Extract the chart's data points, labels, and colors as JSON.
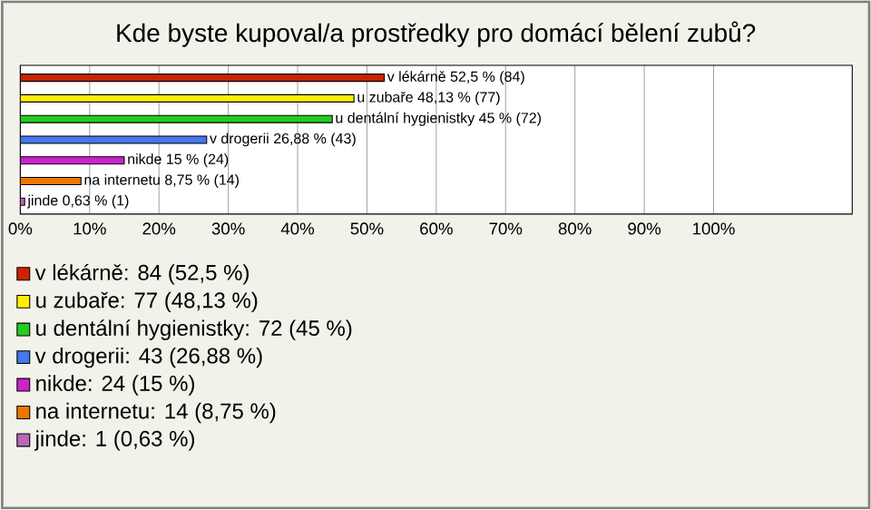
{
  "chart_data": {
    "type": "bar",
    "orientation": "horizontal",
    "title": "Kde byste kupoval/a prostředky pro domácí bělení zubů?",
    "categories": [
      null,
      null,
      null,
      null,
      null,
      null,
      null
    ],
    "series": [
      {
        "name": "v lékárně: 84 (52,5 %)",
        "color": "#cc2200",
        "values": [
          52.5,
          null,
          null,
          null,
          null,
          null,
          null
        ],
        "value_labels": [
          "v lékárně 52,5 % (84)",
          null,
          null,
          null,
          null,
          null,
          null
        ]
      },
      {
        "name": "u zubaře: 77 (48,13 %)",
        "color": "#ffee00",
        "values": [
          null,
          48.13,
          null,
          null,
          null,
          null,
          null
        ],
        "value_labels": [
          null,
          "u zubaře 48,13 % (77)",
          null,
          null,
          null,
          null,
          null
        ]
      },
      {
        "name": "u dentální hygienistky: 72 (45 %)",
        "color": "#22cc22",
        "values": [
          null,
          null,
          45,
          null,
          null,
          null,
          null
        ],
        "value_labels": [
          null,
          null,
          "u dentální hygienistky 45 % (72)",
          null,
          null,
          null,
          null
        ]
      },
      {
        "name": "v drogerii: 43 (26,88 %)",
        "color": "#4477ee",
        "values": [
          null,
          null,
          null,
          26.88,
          null,
          null,
          null
        ],
        "value_labels": [
          null,
          null,
          null,
          "v drogerii 26,88 % (43)",
          null,
          null,
          null
        ]
      },
      {
        "name": "nikde: 24 (15 %)",
        "color": "#cc22cc",
        "values": [
          null,
          null,
          null,
          null,
          15,
          null,
          null
        ],
        "value_labels": [
          null,
          null,
          null,
          null,
          "nikde 15 % (24)",
          null,
          null
        ]
      },
      {
        "name": "na internetu: 14 (8,75 %)",
        "color": "#ee7700",
        "values": [
          null,
          null,
          null,
          null,
          null,
          8.75,
          null
        ],
        "value_labels": [
          null,
          null,
          null,
          null,
          null,
          "na internetu 8,75 % (14)",
          null
        ]
      },
      {
        "name": "jinde: 1 (0,63 %)",
        "color": "#bb66bb",
        "values": [
          null,
          null,
          null,
          null,
          null,
          null,
          0.63
        ],
        "value_labels": [
          null,
          null,
          null,
          null,
          null,
          null,
          "jinde 0,63 % (1)"
        ]
      }
    ],
    "xlim": [
      0,
      120
    ],
    "xticks": [
      {
        "value": 0,
        "label": "0%"
      },
      {
        "value": 10,
        "label": "10%"
      },
      {
        "value": 20,
        "label": "20%"
      },
      {
        "value": 30,
        "label": "30%"
      },
      {
        "value": 40,
        "label": "40%"
      },
      {
        "value": 50,
        "label": "50%"
      },
      {
        "value": 60,
        "label": "60%"
      },
      {
        "value": 70,
        "label": "70%"
      },
      {
        "value": 80,
        "label": "80%"
      },
      {
        "value": 90,
        "label": "90%"
      },
      {
        "value": 100,
        "label": "100%"
      }
    ],
    "grid": "x",
    "tick_labels": "x",
    "legend": "bottom"
  }
}
